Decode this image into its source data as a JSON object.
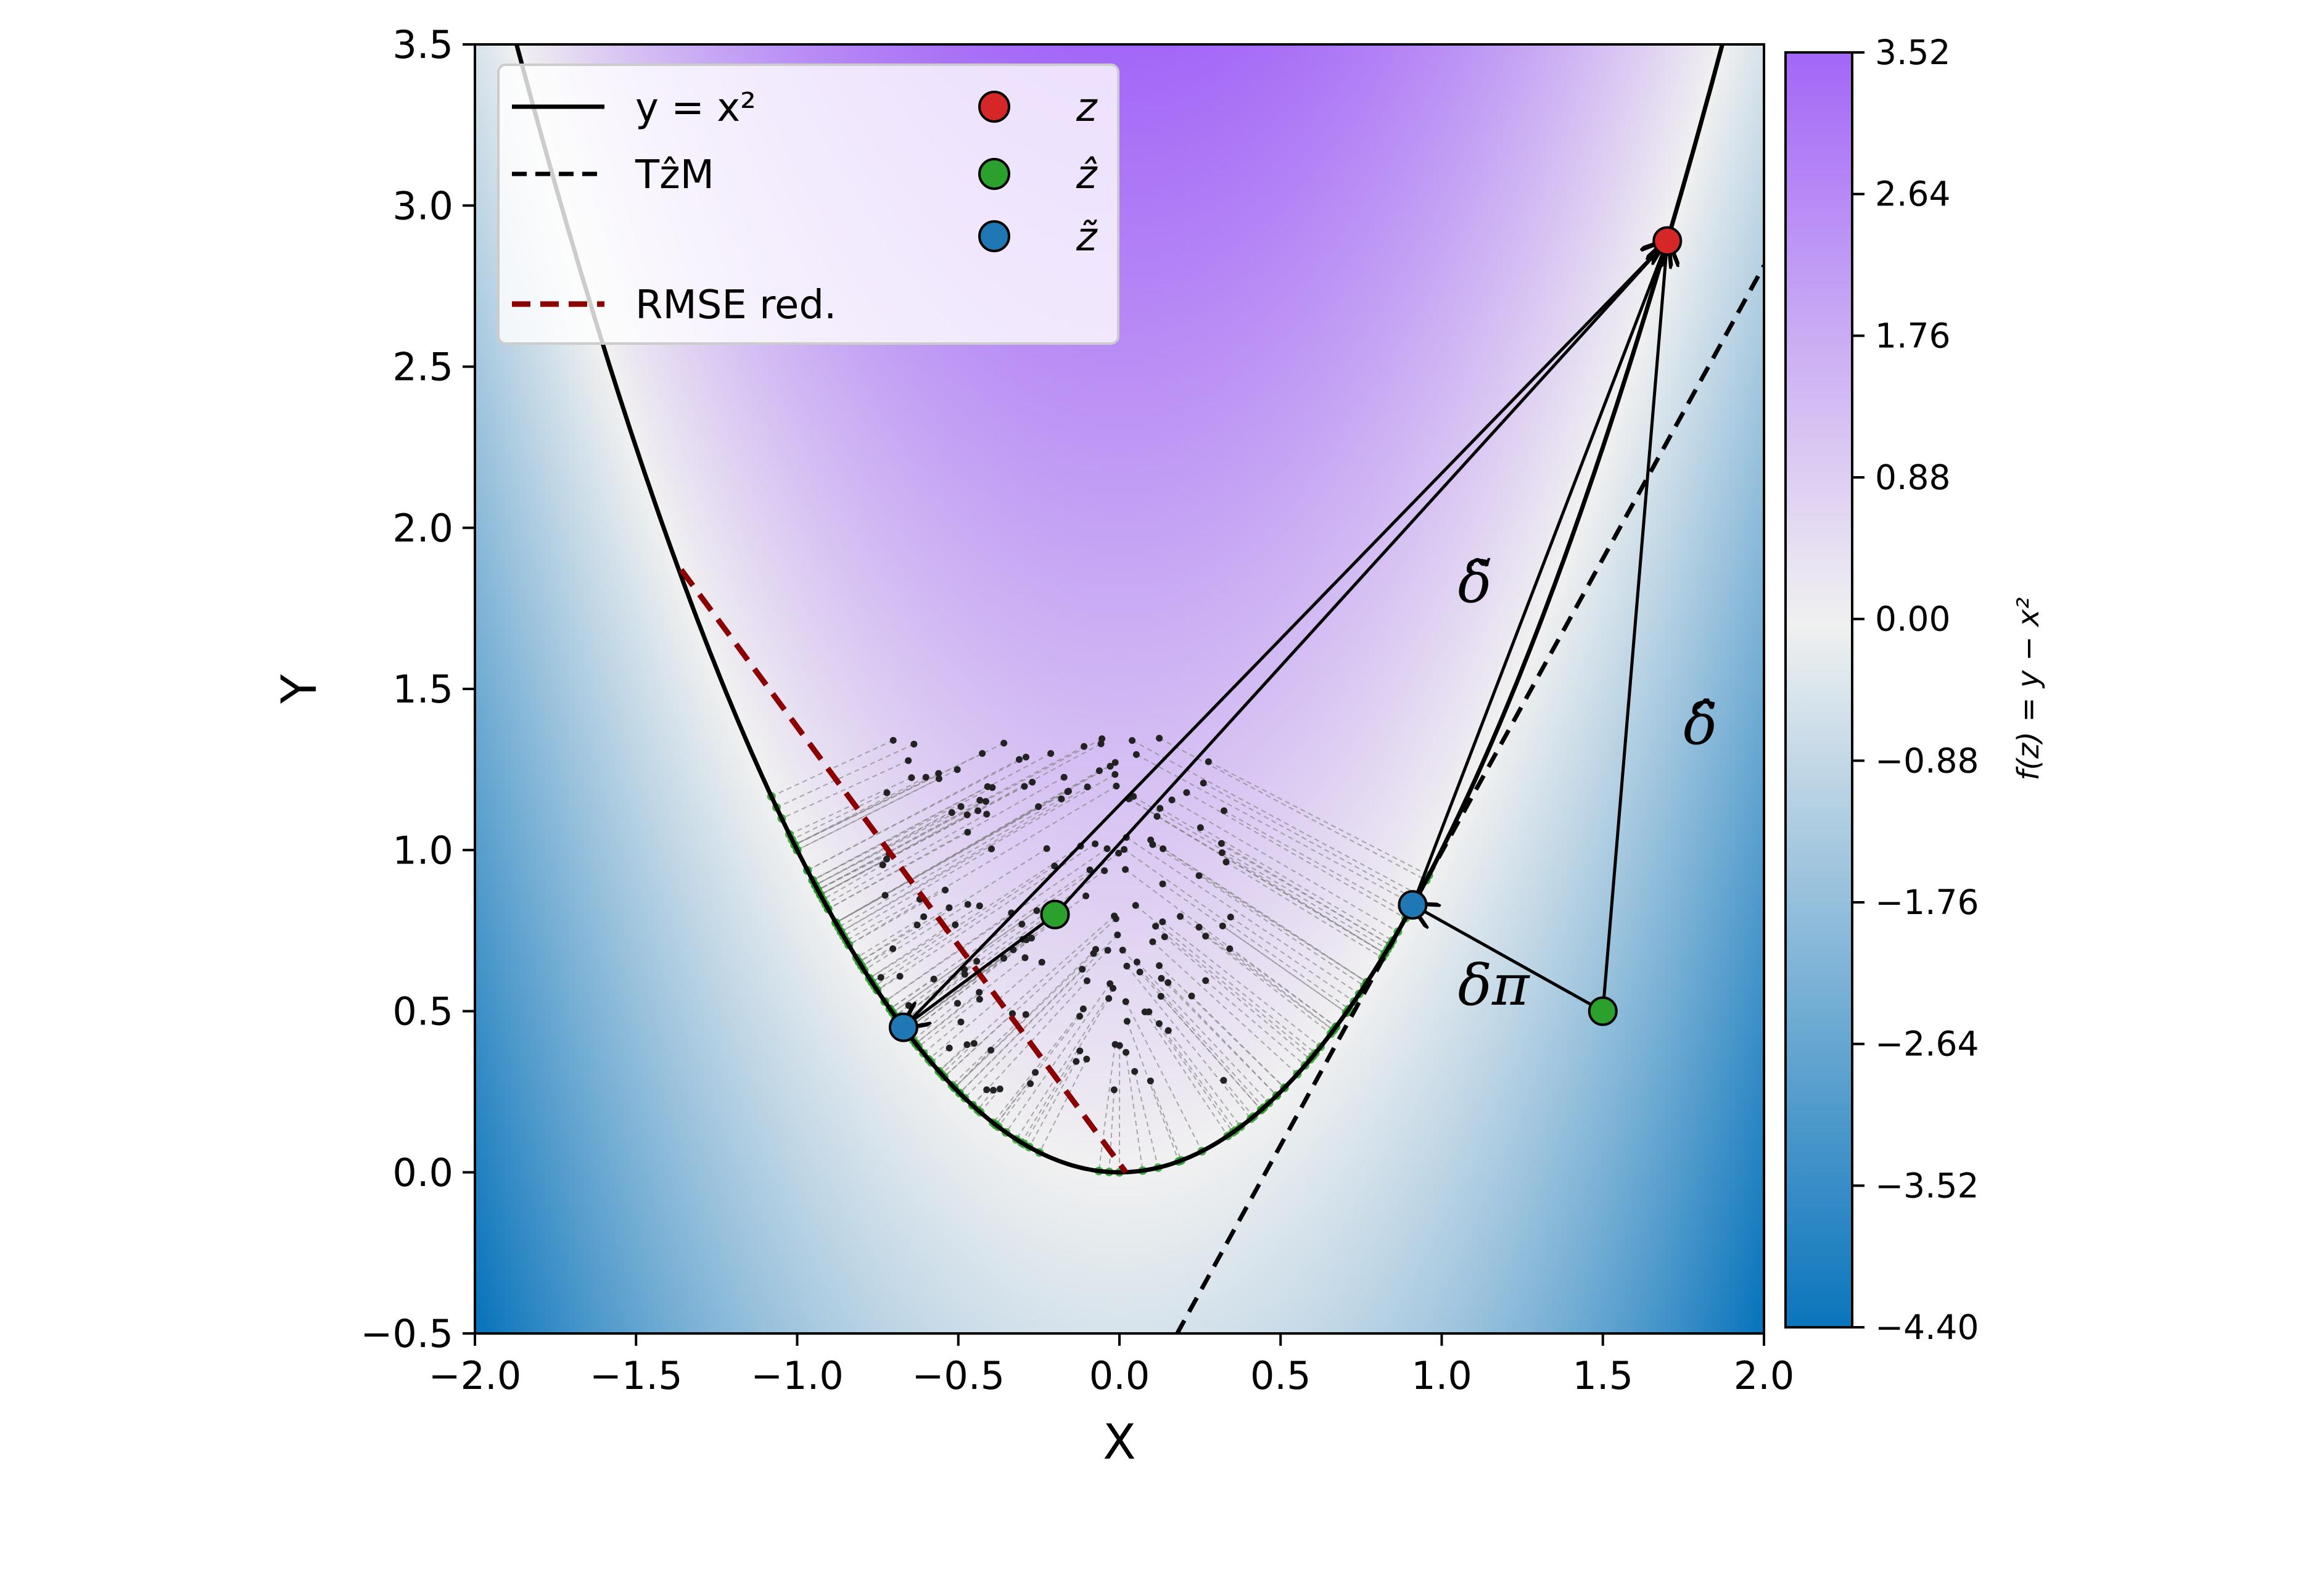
{
  "chart_data": {
    "type": "contour+scatter",
    "xlabel": "X",
    "ylabel": "Y",
    "xlim": [
      -2.0,
      2.0
    ],
    "ylim": [
      -0.5,
      3.5
    ],
    "x_ticks": [
      "−2.0",
      "−1.5",
      "−1.0",
      "−0.5",
      "0.0",
      "0.5",
      "1.0",
      "1.5",
      "2.0"
    ],
    "y_ticks": [
      "−0.5",
      "0.0",
      "0.5",
      "1.0",
      "1.5",
      "2.0",
      "2.5",
      "3.0",
      "3.5"
    ],
    "x_tick_values": [
      -2.0,
      -1.5,
      -1.0,
      -0.5,
      0.0,
      0.5,
      1.0,
      1.5,
      2.0
    ],
    "y_tick_values": [
      -0.5,
      0.0,
      0.5,
      1.0,
      1.5,
      2.0,
      2.5,
      3.0,
      3.5
    ],
    "background_field": "y - x^2",
    "colors": {
      "positive": "#a366f7",
      "zero": "#f1f1f1",
      "negative": "#0a75bc",
      "curve": "#000000",
      "rmse": "#8b0000",
      "point_z": "#d62728",
      "point_zhat": "#2ca02c",
      "point_ztilde": "#1f77b4"
    },
    "colorbar": {
      "label": "f(z) = y − x²",
      "range": [
        -4.4,
        3.52
      ],
      "tick_values": [
        3.52,
        2.64,
        1.76,
        0.88,
        0.0,
        -0.88,
        -1.76,
        -2.64,
        -3.52,
        -4.4
      ],
      "tick_labels": [
        "3.52",
        "2.64",
        "1.76",
        "0.88",
        "0.00",
        "−0.88",
        "−1.76",
        "−2.64",
        "−3.52",
        "−4.40"
      ]
    },
    "legend": {
      "position": "upper-left",
      "entries": [
        {
          "label": "y = x²",
          "style": "solid-line"
        },
        {
          "label": "TẑM",
          "style": "dashed-line"
        },
        {
          "label": "RMSE red.",
          "style": "dashed-line-darkred"
        },
        {
          "label": "z",
          "style": "marker-red"
        },
        {
          "label": "ẑ",
          "style": "marker-green"
        },
        {
          "label": "z̃",
          "style": "marker-blue"
        }
      ]
    },
    "curve": {
      "equation": "y = x^2",
      "x_range": [
        -2.0,
        2.0
      ]
    },
    "tangent_line": {
      "through": [
        0.91,
        0.83
      ],
      "slope": 1.82
    },
    "rmse_line": {
      "from": [
        -1.36,
        1.87
      ],
      "to": [
        0.02,
        0.0
      ]
    },
    "points": {
      "z": [
        1.7,
        2.89
      ],
      "zhat_a": [
        -0.2,
        0.8
      ],
      "ztilde_a": [
        -0.67,
        0.45
      ],
      "zhat_b": [
        1.5,
        0.5
      ],
      "ztilde_b": [
        0.91,
        0.83
      ]
    },
    "arrows": [
      {
        "from": [
          -0.67,
          0.45
        ],
        "to": [
          1.7,
          2.89
        ]
      },
      {
        "from": [
          -0.2,
          0.8
        ],
        "to": [
          -0.67,
          0.45
        ]
      },
      {
        "from": [
          -0.2,
          0.8
        ],
        "to": [
          1.7,
          2.89
        ]
      },
      {
        "from": [
          0.91,
          0.83
        ],
        "to": [
          1.7,
          2.89
        ]
      },
      {
        "from": [
          1.5,
          0.5
        ],
        "to": [
          1.7,
          2.89
        ]
      },
      {
        "from": [
          1.5,
          0.5
        ],
        "to": [
          0.91,
          0.83
        ]
      }
    ],
    "annotations": [
      {
        "text": "δ̃",
        "at": [
          1.05,
          1.77
        ]
      },
      {
        "text": "δ̂",
        "at": [
          1.75,
          1.33
        ]
      },
      {
        "text": "δπ",
        "at": [
          1.05,
          0.52
        ]
      }
    ],
    "scatter_cloud": {
      "x_range": [
        -0.75,
        0.35
      ],
      "y_range": [
        0.25,
        1.35
      ],
      "n_points": 180
    }
  }
}
